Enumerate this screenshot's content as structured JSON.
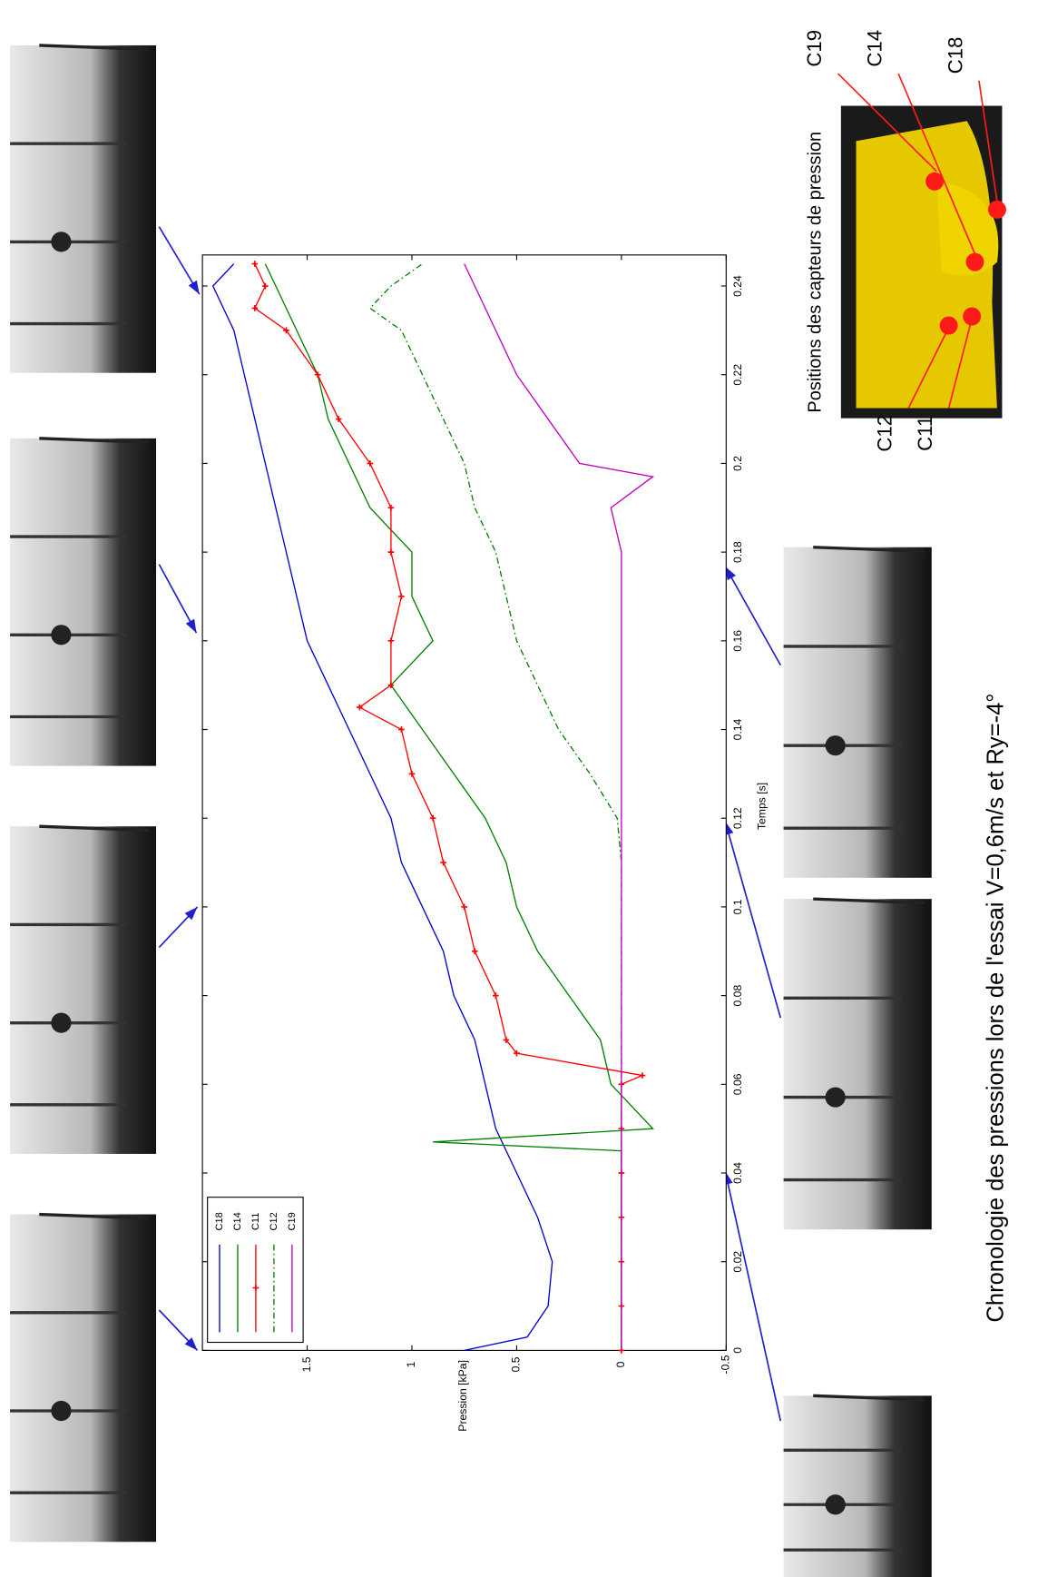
{
  "chart_data": {
    "type": "line",
    "title": "Chronologie des pressions lors de l'essai V=0,6m/s et Ry=-4°",
    "x_label": "Temps [s]",
    "y_label": "Pression [kPa]",
    "xlim": [
      0,
      0.247
    ],
    "ylim": [
      -0.5,
      2
    ],
    "xticks": [
      0,
      0.02,
      0.04,
      0.06,
      0.08,
      0.1,
      0.12,
      0.14,
      0.16,
      0.18,
      0.2,
      0.22,
      0.24
    ],
    "yticks": [
      -0.5,
      0,
      0.5,
      1,
      1.5
    ],
    "legend": "lower left",
    "series": [
      {
        "name": "C18",
        "color": "#0000cc",
        "style": "solid",
        "x": [
          0,
          0.003,
          0.01,
          0.02,
          0.03,
          0.04,
          0.05,
          0.06,
          0.07,
          0.08,
          0.09,
          0.1,
          0.11,
          0.12,
          0.13,
          0.14,
          0.15,
          0.16,
          0.17,
          0.18,
          0.19,
          0.2,
          0.21,
          0.22,
          0.23,
          0.24,
          0.245
        ],
        "values": [
          0.75,
          0.45,
          0.35,
          0.33,
          0.4,
          0.5,
          0.6,
          0.65,
          0.7,
          0.8,
          0.85,
          0.95,
          1.05,
          1.1,
          1.2,
          1.3,
          1.4,
          1.5,
          1.55,
          1.6,
          1.65,
          1.7,
          1.75,
          1.8,
          1.85,
          1.95,
          1.85
        ]
      },
      {
        "name": "C14",
        "color": "#008000",
        "style": "solid",
        "x": [
          0,
          0.02,
          0.04,
          0.045,
          0.047,
          0.05,
          0.06,
          0.07,
          0.08,
          0.09,
          0.1,
          0.11,
          0.12,
          0.13,
          0.14,
          0.15,
          0.16,
          0.17,
          0.18,
          0.19,
          0.2,
          0.21,
          0.22,
          0.23,
          0.24,
          0.245
        ],
        "values": [
          0,
          0,
          0,
          0,
          0.9,
          -0.15,
          0.05,
          0.1,
          0.25,
          0.4,
          0.5,
          0.55,
          0.65,
          0.8,
          0.95,
          1.1,
          0.9,
          1.0,
          1.0,
          1.2,
          1.3,
          1.4,
          1.45,
          1.55,
          1.65,
          1.7
        ]
      },
      {
        "name": "C11",
        "color": "#ff0000",
        "style": "solid",
        "marker": "+",
        "x": [
          0,
          0.01,
          0.02,
          0.03,
          0.04,
          0.05,
          0.06,
          0.062,
          0.067,
          0.07,
          0.08,
          0.09,
          0.1,
          0.11,
          0.12,
          0.13,
          0.14,
          0.145,
          0.15,
          0.16,
          0.17,
          0.18,
          0.19,
          0.2,
          0.21,
          0.22,
          0.23,
          0.235,
          0.24,
          0.245
        ],
        "values": [
          0,
          0,
          0,
          0,
          0,
          0,
          0,
          -0.1,
          0.5,
          0.55,
          0.6,
          0.7,
          0.75,
          0.85,
          0.9,
          1.0,
          1.05,
          1.25,
          1.1,
          1.1,
          1.05,
          1.1,
          1.1,
          1.2,
          1.35,
          1.45,
          1.6,
          1.75,
          1.7,
          1.75
        ]
      },
      {
        "name": "C12",
        "color": "#008000",
        "style": "dashdot",
        "x": [
          0,
          0.05,
          0.1,
          0.11,
          0.12,
          0.13,
          0.14,
          0.15,
          0.16,
          0.17,
          0.18,
          0.19,
          0.2,
          0.21,
          0.22,
          0.23,
          0.235,
          0.24,
          0.245
        ],
        "values": [
          0,
          0,
          0,
          0,
          0.02,
          0.15,
          0.3,
          0.4,
          0.5,
          0.55,
          0.6,
          0.7,
          0.75,
          0.85,
          0.95,
          1.05,
          1.2,
          1.1,
          0.95
        ]
      },
      {
        "name": "C19",
        "color": "#bf00bf",
        "style": "solid",
        "x": [
          0,
          0.06,
          0.12,
          0.18,
          0.19,
          0.197,
          0.2,
          0.21,
          0.22,
          0.23,
          0.24,
          0.245
        ],
        "values": [
          0,
          0,
          0,
          0,
          0.05,
          -0.15,
          0.2,
          0.35,
          0.5,
          0.6,
          0.7,
          0.75
        ]
      }
    ]
  },
  "photo_caption": "Positions des capteurs de pression",
  "sensors": [
    "C19",
    "C14",
    "C18",
    "C12",
    "C11"
  ]
}
